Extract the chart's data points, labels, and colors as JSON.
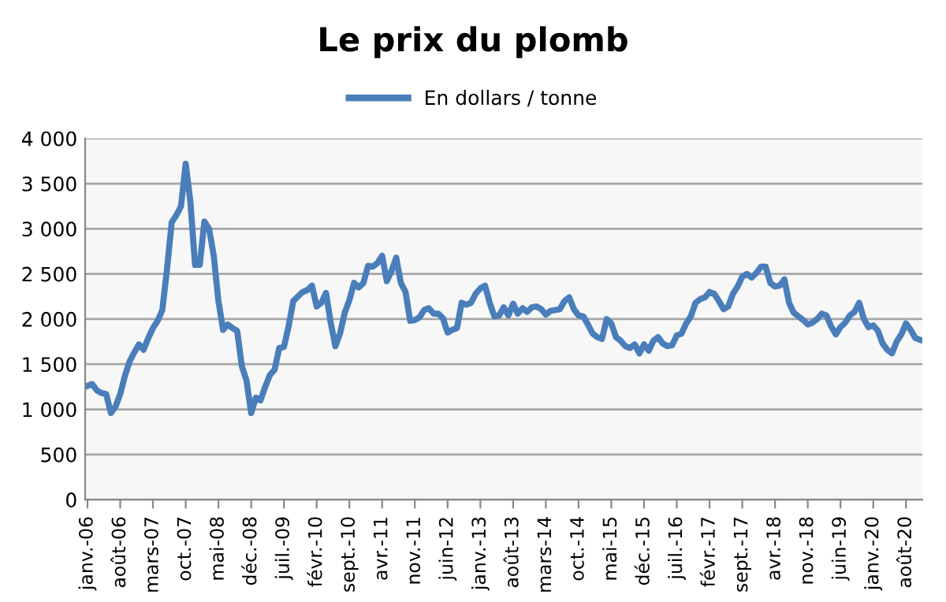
{
  "chart_data": {
    "type": "line",
    "title": "Le prix du plomb",
    "categories": [
      "janv.-06",
      null,
      null,
      null,
      null,
      null,
      null,
      "août-06",
      null,
      null,
      null,
      null,
      null,
      null,
      "mars-07",
      null,
      null,
      null,
      null,
      null,
      null,
      "oct.-07",
      null,
      null,
      null,
      null,
      null,
      null,
      "mai-08",
      null,
      null,
      null,
      null,
      null,
      null,
      "déc.-08",
      null,
      null,
      null,
      null,
      null,
      null,
      "juil.-09",
      null,
      null,
      null,
      null,
      null,
      null,
      "févr.-10",
      null,
      null,
      null,
      null,
      null,
      null,
      "sept.-10",
      null,
      null,
      null,
      null,
      null,
      null,
      "avr.-11",
      null,
      null,
      null,
      null,
      null,
      null,
      "nov.-11",
      null,
      null,
      null,
      null,
      null,
      null,
      "juin-12",
      null,
      null,
      null,
      null,
      null,
      null,
      "janv.-13",
      null,
      null,
      null,
      null,
      null,
      null,
      "août-13",
      null,
      null,
      null,
      null,
      null,
      null,
      "mars-14",
      null,
      null,
      null,
      null,
      null,
      null,
      "oct.-14",
      null,
      null,
      null,
      null,
      null,
      null,
      "mai-15",
      null,
      null,
      null,
      null,
      null,
      null,
      "déc.-15",
      null,
      null,
      null,
      null,
      null,
      null,
      "juil.-16",
      null,
      null,
      null,
      null,
      null,
      null,
      "févr.-17",
      null,
      null,
      null,
      null,
      null,
      null,
      "sept.-17",
      null,
      null,
      null,
      null,
      null,
      null,
      "avr.-18",
      null,
      null,
      null,
      null,
      null,
      null,
      "nov.-18",
      null,
      null,
      null,
      null,
      null,
      null,
      "juin-19",
      null,
      null,
      null,
      null,
      null,
      null,
      "janv.-20",
      null,
      null,
      null,
      null,
      null,
      null,
      "août-20",
      null,
      null,
      null
    ],
    "series": [
      {
        "name": "En dollars / tonne",
        "color": "#4a7ebb",
        "values": [
          1260,
          1280,
          1210,
          1180,
          1170,
          960,
          1030,
          1170,
          1370,
          1530,
          1630,
          1720,
          1660,
          1790,
          1900,
          1980,
          2100,
          2550,
          3070,
          3150,
          3250,
          3720,
          3300,
          2600,
          2600,
          3080,
          3000,
          2700,
          2200,
          1880,
          1940,
          1900,
          1870,
          1480,
          1320,
          960,
          1130,
          1100,
          1250,
          1380,
          1440,
          1680,
          1690,
          1920,
          2200,
          2250,
          2300,
          2320,
          2370,
          2140,
          2180,
          2290,
          1960,
          1700,
          1840,
          2070,
          2210,
          2400,
          2350,
          2400,
          2590,
          2580,
          2620,
          2700,
          2420,
          2530,
          2680,
          2400,
          2300,
          1980,
          1990,
          2020,
          2100,
          2120,
          2060,
          2060,
          2010,
          1850,
          1880,
          1900,
          2180,
          2160,
          2180,
          2280,
          2340,
          2370,
          2180,
          2030,
          2040,
          2130,
          2040,
          2170,
          2060,
          2120,
          2080,
          2130,
          2140,
          2110,
          2050,
          2090,
          2100,
          2110,
          2200,
          2240,
          2110,
          2040,
          2030,
          1940,
          1840,
          1800,
          1780,
          2000,
          1950,
          1800,
          1760,
          1700,
          1680,
          1720,
          1620,
          1720,
          1650,
          1760,
          1800,
          1730,
          1700,
          1710,
          1820,
          1840,
          1950,
          2030,
          2180,
          2220,
          2240,
          2300,
          2280,
          2200,
          2110,
          2140,
          2280,
          2360,
          2470,
          2500,
          2460,
          2510,
          2580,
          2580,
          2400,
          2360,
          2370,
          2440,
          2180,
          2070,
          2030,
          1990,
          1940,
          1960,
          2000,
          2060,
          2040,
          1920,
          1830,
          1910,
          1960,
          2040,
          2080,
          2180,
          2000,
          1910,
          1930,
          1870,
          1730,
          1660,
          1620,
          1750,
          1830,
          1950,
          1880,
          1790,
          1770
        ]
      }
    ],
    "ylim": [
      0,
      4000
    ],
    "yticks": [
      0,
      500,
      {
        "value": 1000,
        "label": "1 000"
      },
      {
        "value": 1500,
        "label": "1 500"
      },
      {
        "value": 2000,
        "label": "2 000"
      },
      {
        "value": 2500,
        "label": "2 500"
      },
      {
        "value": 3000,
        "label": "3 000"
      },
      {
        "value": 3500,
        "label": "3 500"
      },
      {
        "value": 4000,
        "label": "4 000"
      }
    ],
    "grid": "y",
    "legend": "top",
    "marker": "none",
    "line_style": "solid"
  }
}
